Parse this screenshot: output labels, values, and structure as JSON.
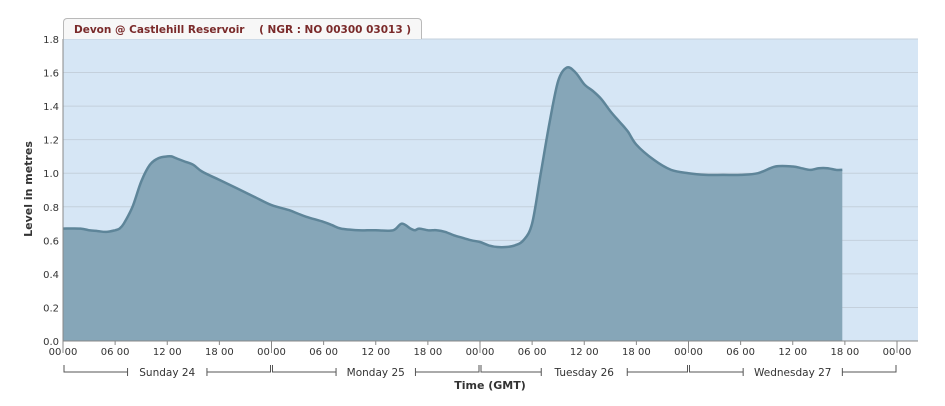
{
  "chart_data": {
    "type": "area",
    "title": "Devon @ Castlehill Reservoir    ( NGR : NO 00300 03013 )",
    "ylabel": "Level in metres",
    "xlabel": "Time (GMT)",
    "ylim": [
      0,
      1.8
    ],
    "yticks": [
      "0.0",
      "0.2",
      "0.4",
      "0.6",
      "0.8",
      "1.0",
      "1.2",
      "1.4",
      "1.6",
      "1.8"
    ],
    "xlim_hours": [
      0,
      96
    ],
    "xticks": [
      "00 00",
      "06 00",
      "12 00",
      "18 00",
      "00 00",
      "06 00",
      "12 00",
      "18 00",
      "00 00",
      "06 00",
      "12 00",
      "18 00",
      "00 00",
      "06 00",
      "12 00",
      "18 00",
      "00 00"
    ],
    "days": [
      "Sunday 24",
      "Monday 25",
      "Tuesday 26",
      "Wednesday 27"
    ],
    "grid": true,
    "colors": {
      "plot_bg": "#d6e6f5",
      "fill": "#86a6b8",
      "line": "#5e8599",
      "grid": "#c4d0dc",
      "title": "#7a2a2a"
    },
    "series": [
      {
        "x": [
          0,
          2,
          3,
          4,
          5,
          6,
          6.5,
          7,
          8,
          9,
          10,
          11,
          12,
          12.5,
          13,
          14,
          15,
          16,
          18,
          20,
          22,
          24,
          26,
          27,
          28,
          30,
          31,
          32,
          34,
          35,
          36,
          38,
          39,
          40,
          40.5,
          41,
          42,
          42.5,
          43,
          44,
          45,
          46,
          47,
          48,
          49,
          50,
          51,
          52,
          53,
          54,
          55,
          56,
          57,
          58,
          59,
          60,
          61,
          62,
          63,
          64,
          65,
          66,
          68,
          70,
          72,
          74,
          76,
          78,
          80,
          82,
          84,
          85,
          86,
          87,
          88,
          89,
          89.7
        ],
        "values": [
          0.67,
          0.67,
          0.66,
          0.655,
          0.65,
          0.66,
          0.67,
          0.7,
          0.8,
          0.95,
          1.05,
          1.09,
          1.1,
          1.1,
          1.09,
          1.07,
          1.05,
          1.01,
          0.96,
          0.91,
          0.86,
          0.81,
          0.78,
          0.76,
          0.74,
          0.71,
          0.69,
          0.67,
          0.66,
          0.66,
          0.66,
          0.66,
          0.7,
          0.67,
          0.66,
          0.67,
          0.66,
          0.66,
          0.66,
          0.65,
          0.63,
          0.615,
          0.6,
          0.59,
          0.57,
          0.56,
          0.56,
          0.57,
          0.6,
          0.7,
          1.0,
          1.3,
          1.55,
          1.63,
          1.6,
          1.53,
          1.49,
          1.44,
          1.37,
          1.31,
          1.25,
          1.17,
          1.08,
          1.02,
          1.0,
          0.99,
          0.99,
          0.99,
          1.0,
          1.04,
          1.04,
          1.03,
          1.02,
          1.03,
          1.03,
          1.02,
          1.02
        ]
      }
    ]
  }
}
